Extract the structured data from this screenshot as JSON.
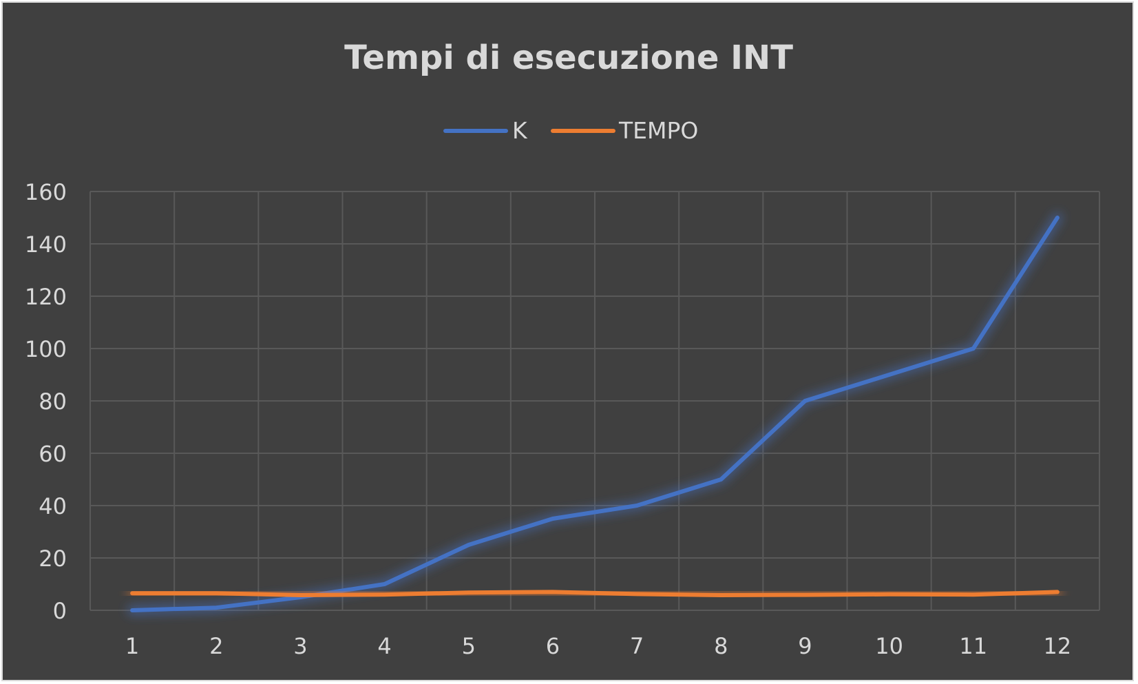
{
  "chart_data": {
    "type": "line",
    "title": "Tempi di esecuzione  INT",
    "xlabel": "",
    "ylabel": "",
    "x": [
      1,
      2,
      3,
      4,
      5,
      6,
      7,
      8,
      9,
      10,
      11,
      12
    ],
    "x_ticks": [
      "1",
      "2",
      "3",
      "4",
      "5",
      "6",
      "7",
      "8",
      "9",
      "10",
      "11",
      "12"
    ],
    "y_ticks": [
      "0",
      "20",
      "40",
      "60",
      "80",
      "100",
      "120",
      "140",
      "160"
    ],
    "ylim": [
      0,
      160
    ],
    "grid": true,
    "legend_position": "top",
    "series": [
      {
        "name": "K",
        "color": "#4472c4",
        "values": [
          0,
          1,
          5,
          10,
          25,
          35,
          40,
          50,
          80,
          90,
          100,
          150
        ]
      },
      {
        "name": "TEMPO",
        "color": "#ed7d31",
        "values": [
          6.5,
          6.5,
          5.8,
          6.0,
          6.8,
          7.0,
          6.2,
          5.8,
          5.9,
          6.1,
          6.0,
          7.0
        ]
      }
    ],
    "colors": {
      "background": "#404040",
      "grid": "#595959",
      "text": "#d9d9d9"
    }
  }
}
